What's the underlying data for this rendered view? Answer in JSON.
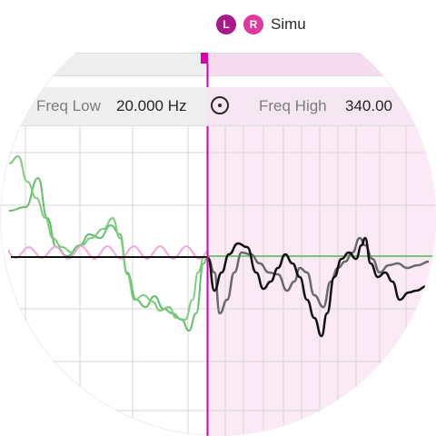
{
  "header": {
    "channel_left": "L",
    "channel_right": "R",
    "title": "Simu"
  },
  "filter": {
    "freq_low_label": "Freq Low",
    "freq_low_value": "20.000 Hz",
    "freq_high_label": "Freq High",
    "freq_high_value": "340.00"
  },
  "colors": {
    "accent": "#d400aa",
    "badge_left": "#a8198a",
    "badge_right": "#e0389f",
    "selection": "#fbeaf6",
    "trace_green": "#3fb54a",
    "trace_pink": "#f2a6dc",
    "trace_black": "#111111",
    "trace_gray": "#6a6a6a"
  },
  "icons": {
    "reset": "circle-dot-icon",
    "playhead": "playhead-marker-icon"
  }
}
